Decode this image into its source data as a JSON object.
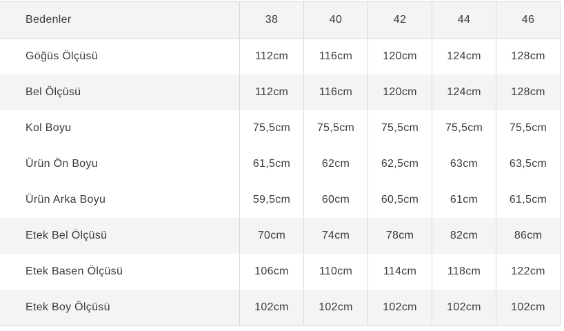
{
  "size_chart": {
    "header": {
      "label": "Bedenler",
      "sizes": [
        "38",
        "40",
        "42",
        "44",
        "46"
      ]
    },
    "rows": [
      {
        "label": "Göğüs Ölçüsü",
        "values": [
          "112cm",
          "116cm",
          "120cm",
          "124cm",
          "128cm"
        ],
        "shaded": false
      },
      {
        "label": "Bel Ölçüsü",
        "values": [
          "112cm",
          "116cm",
          "120cm",
          "124cm",
          "128cm"
        ],
        "shaded": true
      },
      {
        "label": "Kol Boyu",
        "values": [
          "75,5cm",
          "75,5cm",
          "75,5cm",
          "75,5cm",
          "75,5cm"
        ],
        "shaded": false
      },
      {
        "label": "Ürün Ön Boyu",
        "values": [
          "61,5cm",
          "62cm",
          "62,5cm",
          "63cm",
          "63,5cm"
        ],
        "shaded": false
      },
      {
        "label": "Ürün Arka Boyu",
        "values": [
          "59,5cm",
          "60cm",
          "60,5cm",
          "61cm",
          "61,5cm"
        ],
        "shaded": false
      },
      {
        "label": "Etek Bel Ölçüsü",
        "values": [
          "70cm",
          "74cm",
          "78cm",
          "82cm",
          "86cm"
        ],
        "shaded": true
      },
      {
        "label": "Etek Basen Ölçüsü",
        "values": [
          "106cm",
          "110cm",
          "114cm",
          "118cm",
          "122cm"
        ],
        "shaded": false
      },
      {
        "label": "Etek Boy Ölçüsü",
        "values": [
          "102cm",
          "102cm",
          "102cm",
          "102cm",
          "102cm"
        ],
        "shaded": true
      }
    ],
    "colors": {
      "shaded_row_bg": "#f4f4f4",
      "border": "#d9d9d9",
      "text": "#3b3b3b"
    }
  }
}
